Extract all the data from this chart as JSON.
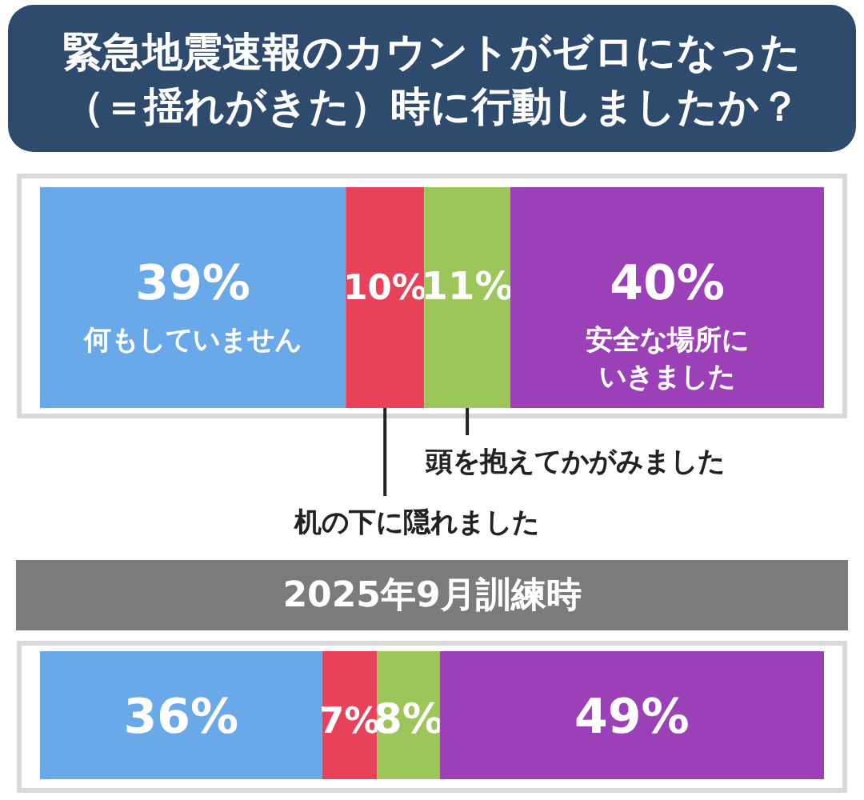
{
  "chart_data": [
    {
      "type": "bar",
      "orientation": "horizontal",
      "stacked": true,
      "title": "緊急地震速報のカウントがゼロになった（＝揺れがきた）時に行動しましたか？",
      "categories": [
        null
      ],
      "tick_labels": false,
      "legend": false,
      "series": [
        {
          "name": "何もしていません",
          "color": "#6aa9e9",
          "values": [
            39
          ],
          "value_labels": [
            "39%"
          ]
        },
        {
          "name": "机の下に隠れました",
          "color": "#e8415a",
          "values": [
            10
          ],
          "value_labels": [
            "10%"
          ]
        },
        {
          "name": "頭を抱えてかがみました",
          "color": "#9cc65a",
          "values": [
            11
          ],
          "value_labels": [
            "11%"
          ]
        },
        {
          "name": "安全な場所にいきました",
          "color": "#9b40b6",
          "values": [
            40
          ],
          "value_labels": [
            "40%"
          ]
        }
      ]
    },
    {
      "type": "bar",
      "orientation": "horizontal",
      "stacked": true,
      "title": "2025年9月訓練時",
      "categories": [
        null
      ],
      "tick_labels": false,
      "legend": false,
      "series": [
        {
          "color": "#6aa9e9",
          "values": [
            36
          ],
          "value_labels": [
            "36%"
          ]
        },
        {
          "color": "#e8415a",
          "values": [
            7
          ],
          "value_labels": [
            "7%"
          ]
        },
        {
          "color": "#9cc65a",
          "values": [
            8
          ],
          "value_labels": [
            "8%"
          ]
        },
        {
          "color": "#9b40b6",
          "values": [
            49
          ],
          "value_labels": [
            "49%"
          ]
        }
      ]
    }
  ]
}
